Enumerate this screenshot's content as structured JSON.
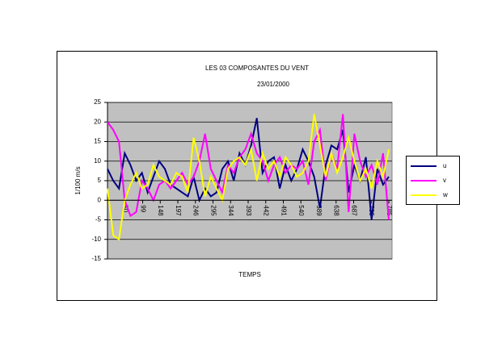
{
  "chart_data": {
    "type": "line",
    "title": "LES 03 COMPOSANTES DU VENT",
    "subtitle": "23/01/2000",
    "ylabel": "1/100 m/s",
    "xlabel": "TEMPS",
    "x": [
      1,
      17,
      33,
      49,
      65,
      81,
      97,
      113,
      129,
      145,
      161,
      177,
      193,
      209,
      225,
      241,
      257,
      273,
      289,
      305,
      321,
      337,
      353,
      369,
      385,
      401,
      417,
      433,
      449,
      465,
      481,
      497,
      513,
      529,
      545,
      561,
      577,
      593,
      609,
      625,
      641,
      657,
      673,
      689,
      705,
      721,
      737,
      753,
      769,
      785
    ],
    "series": [
      {
        "name": "u",
        "color": "#000080",
        "values": [
          8,
          5,
          3,
          12,
          9,
          5,
          7,
          2,
          6,
          10,
          8,
          4,
          3,
          2,
          1,
          6,
          0,
          3,
          1,
          2,
          8,
          10,
          5,
          12,
          9,
          14,
          21,
          7,
          10,
          11,
          3,
          9,
          5,
          8,
          13,
          10,
          6,
          -2,
          9,
          14,
          13,
          18,
          2,
          9,
          5,
          11,
          -5,
          8,
          4,
          6
        ]
      },
      {
        "name": "v",
        "color": "#ff00ff",
        "values": [
          20,
          18,
          15,
          0,
          -4,
          -3,
          5,
          3,
          0,
          4,
          5,
          3,
          5,
          7,
          4,
          6,
          10,
          17,
          8,
          5,
          2,
          9,
          7,
          11,
          13,
          17,
          12,
          10,
          5,
          9,
          11,
          7,
          9,
          8,
          10,
          4,
          15,
          18,
          5,
          12,
          8,
          22,
          -3,
          17,
          10,
          6,
          9,
          4,
          12,
          -5
        ]
      },
      {
        "name": "w",
        "color": "#ffff00",
        "values": [
          3,
          -9,
          -10,
          0,
          4,
          7,
          3,
          4,
          9,
          6,
          5,
          4,
          7,
          6,
          2,
          16,
          10,
          1,
          6,
          3,
          0,
          8,
          10,
          11,
          9,
          13,
          5,
          12,
          8,
          10,
          6,
          11,
          9,
          6,
          7,
          10,
          22,
          14,
          6,
          12,
          7,
          11,
          16,
          10,
          5,
          8,
          3,
          10,
          6,
          13
        ]
      }
    ],
    "xlim": [
      1,
      794
    ],
    "xticks": [
      50,
      99,
      148,
      197,
      246,
      295,
      344,
      393,
      442,
      491,
      540,
      589,
      638,
      687,
      736,
      785
    ],
    "ylim": [
      -15,
      25
    ],
    "yticks": [
      -15,
      -10,
      -5,
      0,
      5,
      10,
      15,
      20,
      25
    ],
    "grid": true,
    "legend": "right",
    "plot_background": "#c0c0c0"
  }
}
